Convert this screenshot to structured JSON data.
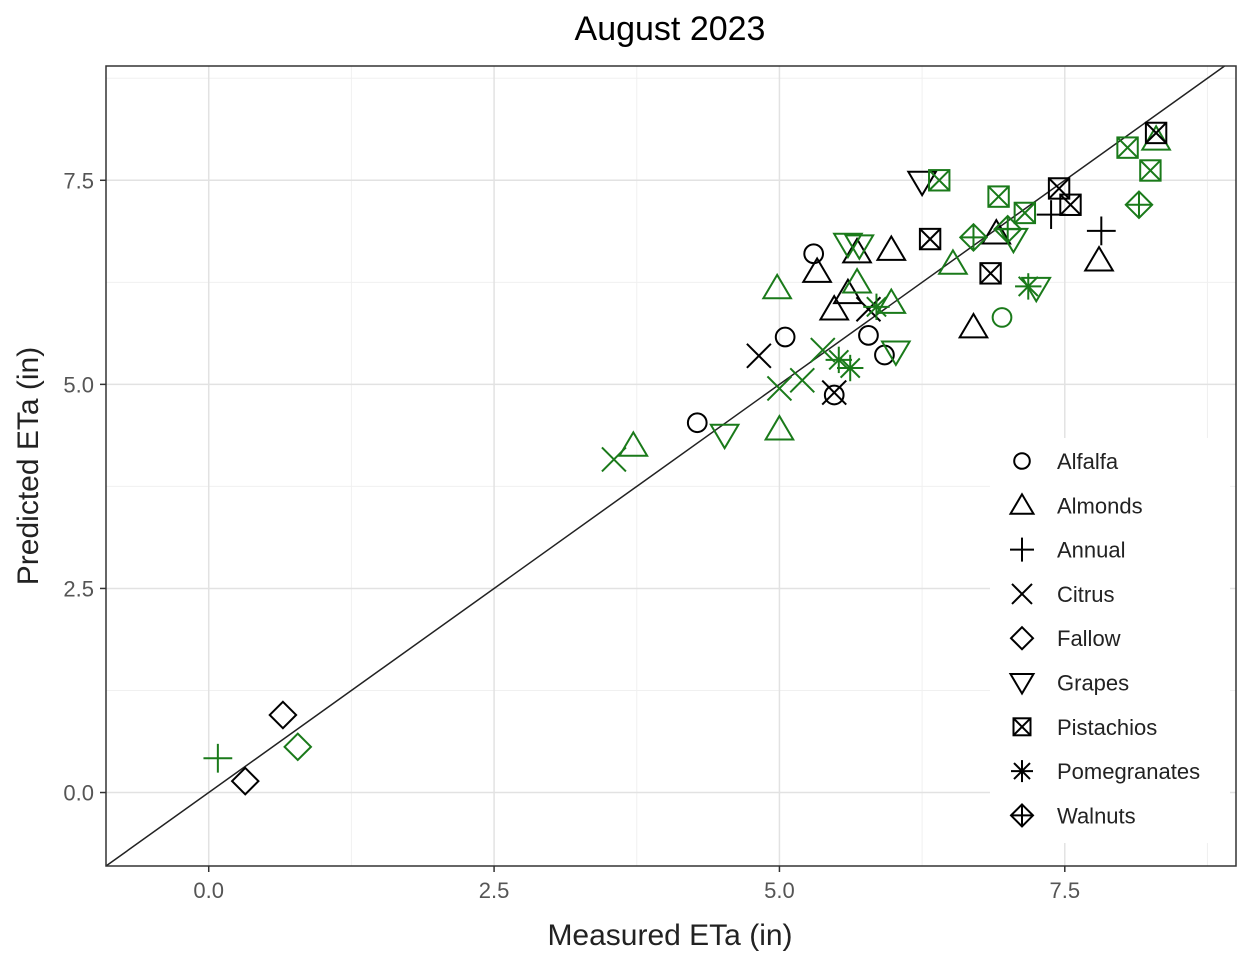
{
  "chart_data": {
    "type": "scatter",
    "title": "August 2023",
    "xlabel": "Measured ETa (in)",
    "ylabel": "Predicted ETa (in)",
    "xlim": [
      -0.9,
      9.0
    ],
    "ylim": [
      -0.9,
      8.9
    ],
    "x_ticks": [
      "0.0",
      "2.5",
      "5.0",
      "7.5"
    ],
    "y_ticks": [
      "0.0",
      "2.5",
      "5.0",
      "7.5"
    ],
    "grid": true,
    "reference_line": "1:1",
    "legend_position": "bottom-right",
    "colors": {
      "black": "#000000",
      "green": "#1a7a1a"
    },
    "series": [
      {
        "name": "Alfalfa",
        "shape": "circle",
        "points": [
          {
            "x": 4.28,
            "y": 4.53,
            "c": "black"
          },
          {
            "x": 5.05,
            "y": 5.58,
            "c": "black"
          },
          {
            "x": 5.3,
            "y": 6.6,
            "c": "black"
          },
          {
            "x": 5.48,
            "y": 4.87,
            "c": "black"
          },
          {
            "x": 5.78,
            "y": 5.6,
            "c": "black"
          },
          {
            "x": 5.92,
            "y": 5.36,
            "c": "black"
          },
          {
            "x": 6.95,
            "y": 5.82,
            "c": "green"
          }
        ]
      },
      {
        "name": "Almonds",
        "shape": "triangle-up",
        "points": [
          {
            "x": 3.72,
            "y": 4.25,
            "c": "green"
          },
          {
            "x": 5.0,
            "y": 4.45,
            "c": "green"
          },
          {
            "x": 4.98,
            "y": 6.18,
            "c": "green"
          },
          {
            "x": 5.33,
            "y": 6.38,
            "c": "black"
          },
          {
            "x": 5.48,
            "y": 5.92,
            "c": "black"
          },
          {
            "x": 5.6,
            "y": 6.12,
            "c": "black"
          },
          {
            "x": 5.68,
            "y": 6.25,
            "c": "green"
          },
          {
            "x": 5.68,
            "y": 6.62,
            "c": "black"
          },
          {
            "x": 5.98,
            "y": 6.0,
            "c": "green"
          },
          {
            "x": 5.98,
            "y": 6.65,
            "c": "black"
          },
          {
            "x": 6.52,
            "y": 6.48,
            "c": "green"
          },
          {
            "x": 6.7,
            "y": 5.7,
            "c": "black"
          },
          {
            "x": 6.9,
            "y": 6.85,
            "c": "black"
          },
          {
            "x": 7.8,
            "y": 6.52,
            "c": "black"
          },
          {
            "x": 8.3,
            "y": 8.0,
            "c": "green"
          }
        ]
      },
      {
        "name": "Annual",
        "shape": "plus",
        "points": [
          {
            "x": 0.08,
            "y": 0.42,
            "c": "green"
          },
          {
            "x": 7.38,
            "y": 7.08,
            "c": "black"
          },
          {
            "x": 7.82,
            "y": 6.88,
            "c": "black"
          }
        ]
      },
      {
        "name": "Citrus",
        "shape": "cross",
        "points": [
          {
            "x": 3.55,
            "y": 4.08,
            "c": "green"
          },
          {
            "x": 4.82,
            "y": 5.35,
            "c": "black"
          },
          {
            "x": 5.0,
            "y": 4.95,
            "c": "green"
          },
          {
            "x": 5.2,
            "y": 5.05,
            "c": "green"
          },
          {
            "x": 5.38,
            "y": 5.42,
            "c": "green"
          },
          {
            "x": 5.48,
            "y": 4.9,
            "c": "black"
          },
          {
            "x": 5.78,
            "y": 5.92,
            "c": "black"
          }
        ]
      },
      {
        "name": "Fallow",
        "shape": "diamond",
        "points": [
          {
            "x": 0.32,
            "y": 0.14,
            "c": "black"
          },
          {
            "x": 0.65,
            "y": 0.95,
            "c": "black"
          },
          {
            "x": 0.78,
            "y": 0.56,
            "c": "green"
          }
        ]
      },
      {
        "name": "Grapes",
        "shape": "triangle-down",
        "points": [
          {
            "x": 4.52,
            "y": 4.38,
            "c": "green"
          },
          {
            "x": 5.6,
            "y": 6.72,
            "c": "green"
          },
          {
            "x": 5.7,
            "y": 6.7,
            "c": "green"
          },
          {
            "x": 6.02,
            "y": 5.4,
            "c": "green"
          },
          {
            "x": 6.25,
            "y": 7.48,
            "c": "black"
          },
          {
            "x": 7.05,
            "y": 6.78,
            "c": "green"
          },
          {
            "x": 7.25,
            "y": 6.18,
            "c": "green"
          }
        ]
      },
      {
        "name": "Pistachios",
        "shape": "square-x",
        "points": [
          {
            "x": 6.32,
            "y": 6.78,
            "c": "black"
          },
          {
            "x": 6.4,
            "y": 7.5,
            "c": "green"
          },
          {
            "x": 6.85,
            "y": 6.36,
            "c": "black"
          },
          {
            "x": 6.92,
            "y": 7.3,
            "c": "green"
          },
          {
            "x": 7.15,
            "y": 7.1,
            "c": "green"
          },
          {
            "x": 7.45,
            "y": 7.4,
            "c": "black"
          },
          {
            "x": 7.55,
            "y": 7.2,
            "c": "black"
          },
          {
            "x": 8.05,
            "y": 7.9,
            "c": "green"
          },
          {
            "x": 8.25,
            "y": 7.62,
            "c": "green"
          },
          {
            "x": 8.3,
            "y": 8.08,
            "c": "black"
          }
        ]
      },
      {
        "name": "Pomegranates",
        "shape": "asterisk",
        "points": [
          {
            "x": 5.52,
            "y": 5.3,
            "c": "green"
          },
          {
            "x": 5.62,
            "y": 5.2,
            "c": "green"
          },
          {
            "x": 5.85,
            "y": 5.95,
            "c": "green"
          },
          {
            "x": 7.18,
            "y": 6.2,
            "c": "green"
          }
        ]
      },
      {
        "name": "Walnuts",
        "shape": "diamond-plus",
        "points": [
          {
            "x": 6.7,
            "y": 6.8,
            "c": "green"
          },
          {
            "x": 7.0,
            "y": 6.9,
            "c": "green"
          },
          {
            "x": 8.15,
            "y": 7.2,
            "c": "green"
          }
        ]
      }
    ]
  }
}
